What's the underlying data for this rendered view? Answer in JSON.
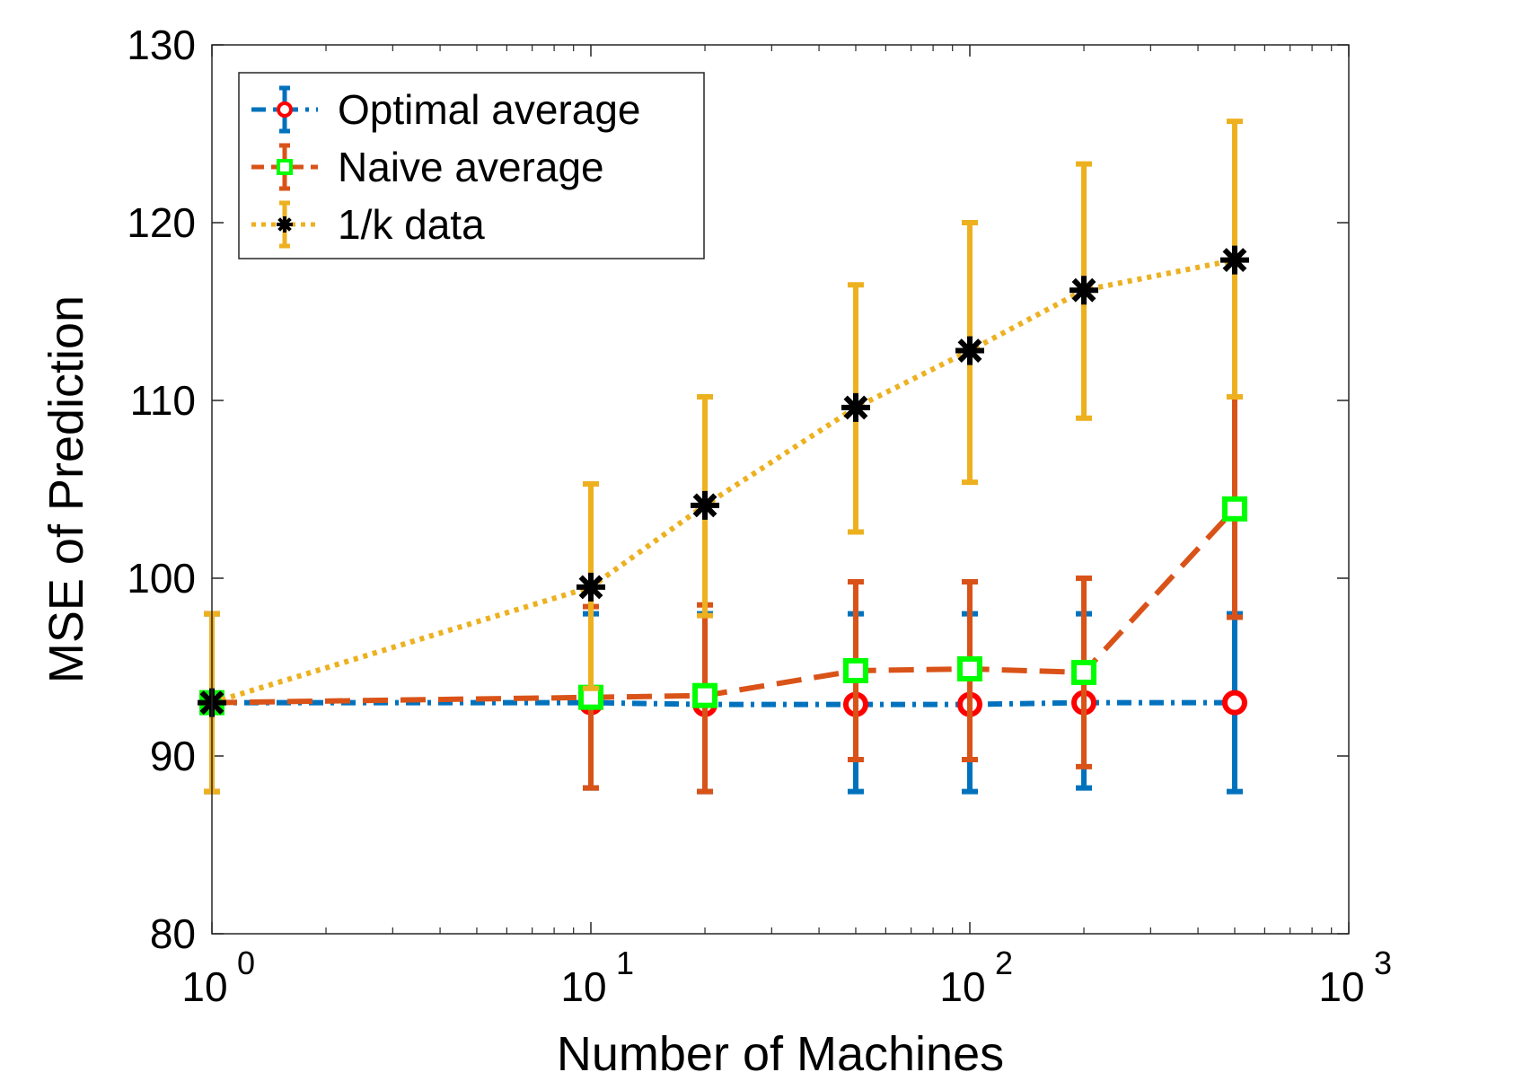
{
  "chart_data": {
    "type": "line",
    "xlabel": "Number of Machines",
    "ylabel": "MSE of Prediction",
    "xscale": "log",
    "xlim": [
      1,
      1000
    ],
    "ylim": [
      80,
      130
    ],
    "x_ticks": [
      {
        "base": "10",
        "exp": "0"
      },
      {
        "base": "10",
        "exp": "1"
      },
      {
        "base": "10",
        "exp": "2"
      },
      {
        "base": "10",
        "exp": "3"
      }
    ],
    "y_ticks": [
      "80",
      "90",
      "100",
      "110",
      "120",
      "130"
    ],
    "legend_position": "top-left",
    "grid": false,
    "x": [
      1,
      10,
      20,
      50,
      100,
      200,
      500
    ],
    "series": [
      {
        "name": "Optimal average",
        "color": "#0072BD",
        "marker_color": "#FF0000",
        "line_style": "dash-dot",
        "marker": "circle",
        "values": [
          93.0,
          93.0,
          92.9,
          92.9,
          92.9,
          93.0,
          93.0
        ],
        "err_low": [
          88.0,
          88.2,
          88.0,
          88.0,
          88.0,
          88.2,
          88.0
        ],
        "err_high": [
          98.0,
          98.0,
          98.0,
          98.0,
          98.0,
          98.0,
          98.0
        ]
      },
      {
        "name": "Naive average",
        "color": "#D95319",
        "marker_color": "#00FF00",
        "line_style": "dashed",
        "marker": "square",
        "values": [
          93.0,
          93.3,
          93.4,
          94.8,
          94.9,
          94.7,
          103.9
        ],
        "err_low": [
          88.0,
          88.2,
          88.0,
          89.8,
          89.8,
          89.4,
          97.8
        ],
        "err_high": [
          98.0,
          98.4,
          98.5,
          99.8,
          99.8,
          100.0,
          110.2
        ]
      },
      {
        "name": "1/k data",
        "color": "#EDB120",
        "marker_color": "#000000",
        "line_style": "dotted",
        "marker": "asterisk",
        "values": [
          93.0,
          99.5,
          104.1,
          109.6,
          112.8,
          116.2,
          117.9
        ],
        "err_low": [
          88.0,
          93.8,
          97.9,
          102.6,
          105.4,
          109.0,
          110.2
        ],
        "err_high": [
          98.0,
          105.3,
          110.2,
          116.5,
          120.0,
          123.3,
          125.7
        ]
      }
    ]
  }
}
